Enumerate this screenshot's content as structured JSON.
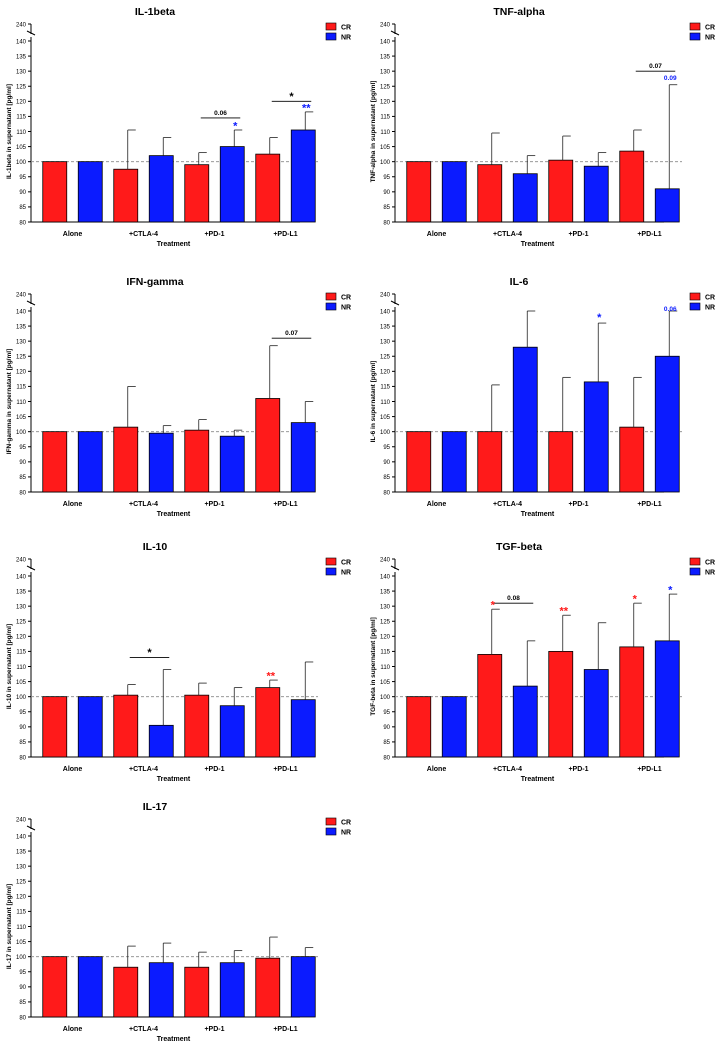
{
  "figure": {
    "description_visible": false
  },
  "legend_labels": [
    "CR",
    "NR"
  ],
  "colors": {
    "CR": "#ff1a1a",
    "NR": "#0b1bff",
    "axis": "#000000",
    "reference_line": "#8a8a8a"
  },
  "chart_data": [
    {
      "type": "bar",
      "title": "IL-1beta",
      "ylabel": "IL-1beta in supernatant [pg/ml]",
      "xlabel": "Treatment",
      "categories": [
        "Alone",
        "+CTLA-4",
        "+PD-1",
        "+PD-L1"
      ],
      "series": [
        {
          "name": "CR",
          "values": [
            100,
            97.5,
            99,
            102.5
          ],
          "errors": [
            0,
            13,
            4,
            5.5
          ]
        },
        {
          "name": "NR",
          "values": [
            100,
            102,
            105,
            110.5
          ],
          "errors": [
            0,
            6,
            5.5,
            6
          ]
        }
      ],
      "ylim": [
        80,
        140
      ],
      "yticks": [
        80,
        85,
        90,
        95,
        100,
        105,
        110,
        115,
        120,
        125,
        130,
        135,
        140
      ],
      "ybreak_label": "240",
      "reference_line": 100,
      "legend": "top-right",
      "annotations": [
        {
          "category": 2,
          "type": "bracket",
          "text": "0.06",
          "y": 114.5
        },
        {
          "category": 2,
          "series": "NR",
          "type": "star",
          "text": "*",
          "y": 112
        },
        {
          "category": 3,
          "type": "bracket",
          "text": "*",
          "y": 120
        },
        {
          "category": 3,
          "series": "NR",
          "type": "star",
          "text": "**",
          "y": 118
        }
      ]
    },
    {
      "type": "bar",
      "title": "TNF-alpha",
      "ylabel": "TNF-alpha in supernatant [pg/ml]",
      "xlabel": "Treatment",
      "categories": [
        "Alone",
        "+CTLA-4",
        "+PD-1",
        "+PD-L1"
      ],
      "series": [
        {
          "name": "CR",
          "values": [
            100,
            99,
            100.5,
            103.5
          ],
          "errors": [
            0,
            10.5,
            8,
            7
          ]
        },
        {
          "name": "NR",
          "values": [
            100,
            96,
            98.5,
            91
          ],
          "errors": [
            0,
            6,
            4.5,
            34.5
          ]
        }
      ],
      "ylim": [
        80,
        140
      ],
      "yticks": [
        80,
        85,
        90,
        95,
        100,
        105,
        110,
        115,
        120,
        125,
        130,
        135,
        140
      ],
      "ybreak_label": "240",
      "reference_line": 100,
      "legend": "top-right",
      "annotations": [
        {
          "category": 3,
          "type": "bracket",
          "text": "0.07",
          "y": 130
        },
        {
          "category": 3,
          "series": "NR",
          "type": "pvalue",
          "text": "0.09",
          "y": 127
        }
      ]
    },
    {
      "type": "bar",
      "title": "IFN-gamma",
      "ylabel": "IFN-gamma in supernatant [pg/ml]",
      "xlabel": "Treatment",
      "categories": [
        "Alone",
        "+CTLA-4",
        "+PD-1",
        "+PD-L1"
      ],
      "series": [
        {
          "name": "CR",
          "values": [
            100,
            101.5,
            100.5,
            111
          ],
          "errors": [
            0,
            13.5,
            3.5,
            17.5
          ]
        },
        {
          "name": "NR",
          "values": [
            100,
            99.5,
            98.5,
            103
          ],
          "errors": [
            0,
            2.5,
            2,
            7
          ]
        }
      ],
      "ylim": [
        80,
        140
      ],
      "yticks": [
        80,
        85,
        90,
        95,
        100,
        105,
        110,
        115,
        120,
        125,
        130,
        135,
        140
      ],
      "ybreak_label": "240",
      "reference_line": 100,
      "legend": "top-right",
      "annotations": [
        {
          "category": 3,
          "type": "bracket",
          "text": "0.07",
          "y": 131
        }
      ]
    },
    {
      "type": "bar",
      "title": "IL-6",
      "ylabel": "IL-6 in supernatant [pg/ml]",
      "xlabel": "Treatment",
      "categories": [
        "Alone",
        "+CTLA-4",
        "+PD-1",
        "+PD-L1"
      ],
      "series": [
        {
          "name": "CR",
          "values": [
            100,
            100,
            100,
            101.5
          ],
          "errors": [
            0,
            15.5,
            18,
            16.5
          ]
        },
        {
          "name": "NR",
          "values": [
            100,
            128,
            116.5,
            125
          ],
          "errors": [
            0,
            114,
            19.5,
            18
          ]
        }
      ],
      "ylim": [
        80,
        140
      ],
      "yticks": [
        80,
        85,
        90,
        95,
        100,
        105,
        110,
        115,
        120,
        125,
        130,
        135,
        140
      ],
      "ybreak_label": "240",
      "reference_line": 100,
      "legend": "top-right",
      "annotations": [
        {
          "category": 2,
          "series": "NR",
          "type": "star",
          "text": "*",
          "y": 138
        },
        {
          "category": 3,
          "series": "NR",
          "type": "pvalue",
          "text": "0.06",
          "y": 146
        }
      ]
    },
    {
      "type": "bar",
      "title": "IL-10",
      "ylabel": "IL-10 in supernatant [pg/ml]",
      "xlabel": "Treatment",
      "categories": [
        "Alone",
        "+CTLA-4",
        "+PD-1",
        "+PD-L1"
      ],
      "series": [
        {
          "name": "CR",
          "values": [
            100,
            100.5,
            100.5,
            103
          ],
          "errors": [
            0,
            3.5,
            4,
            2.5
          ]
        },
        {
          "name": "NR",
          "values": [
            100,
            90.5,
            97,
            99
          ],
          "errors": [
            0,
            18.5,
            6,
            12.5
          ]
        }
      ],
      "ylim": [
        80,
        140
      ],
      "yticks": [
        80,
        85,
        90,
        95,
        100,
        105,
        110,
        115,
        120,
        125,
        130,
        135,
        140
      ],
      "ybreak_label": "240",
      "reference_line": 100,
      "legend": "top-right",
      "annotations": [
        {
          "category": 1,
          "type": "bracket",
          "text": "*",
          "y": 113
        },
        {
          "category": 3,
          "series": "CR",
          "type": "star",
          "text": "**",
          "y": 107
        }
      ]
    },
    {
      "type": "bar",
      "title": "TGF-beta",
      "ylabel": "TGF-beta in supernatant [pg/ml]",
      "xlabel": "Treatment",
      "categories": [
        "Alone",
        "+CTLA-4",
        "+PD-1",
        "+PD-L1"
      ],
      "series": [
        {
          "name": "CR",
          "values": [
            100,
            114,
            115,
            116.5
          ],
          "errors": [
            0,
            15,
            12,
            14.5
          ]
        },
        {
          "name": "NR",
          "values": [
            100,
            103.5,
            109,
            118.5
          ],
          "errors": [
            0,
            15,
            15.5,
            15.5
          ]
        }
      ],
      "ylim": [
        80,
        140
      ],
      "yticks": [
        80,
        85,
        90,
        95,
        100,
        105,
        110,
        115,
        120,
        125,
        130,
        135,
        140
      ],
      "ybreak_label": "240",
      "reference_line": 100,
      "legend": "top-right",
      "annotations": [
        {
          "category": 1,
          "type": "bracket",
          "text": "0.08",
          "y": 131
        },
        {
          "category": 1,
          "series": "CR",
          "type": "star",
          "text": "*",
          "y": 130.5
        },
        {
          "category": 2,
          "series": "CR",
          "type": "star",
          "text": "**",
          "y": 128.5
        },
        {
          "category": 3,
          "series": "CR",
          "type": "star",
          "text": "*",
          "y": 132.5
        },
        {
          "category": 3,
          "series": "NR",
          "type": "star",
          "text": "*",
          "y": 135.5
        }
      ]
    },
    {
      "type": "bar",
      "title": "IL-17",
      "ylabel": "IL-17 in supernatant [pg/ml]",
      "xlabel": "Treatment",
      "categories": [
        "Alone",
        "+CTLA-4",
        "+PD-1",
        "+PD-L1"
      ],
      "series": [
        {
          "name": "CR",
          "values": [
            100,
            96.5,
            96.5,
            99.5
          ],
          "errors": [
            0,
            7,
            5,
            7
          ]
        },
        {
          "name": "NR",
          "values": [
            100,
            98,
            98,
            100
          ],
          "errors": [
            0,
            6.5,
            4,
            3
          ]
        }
      ],
      "ylim": [
        80,
        140
      ],
      "yticks": [
        80,
        85,
        90,
        95,
        100,
        105,
        110,
        115,
        120,
        125,
        130,
        135,
        140
      ],
      "ybreak_label": "240",
      "reference_line": 100,
      "legend": "top-right",
      "annotations": []
    }
  ]
}
